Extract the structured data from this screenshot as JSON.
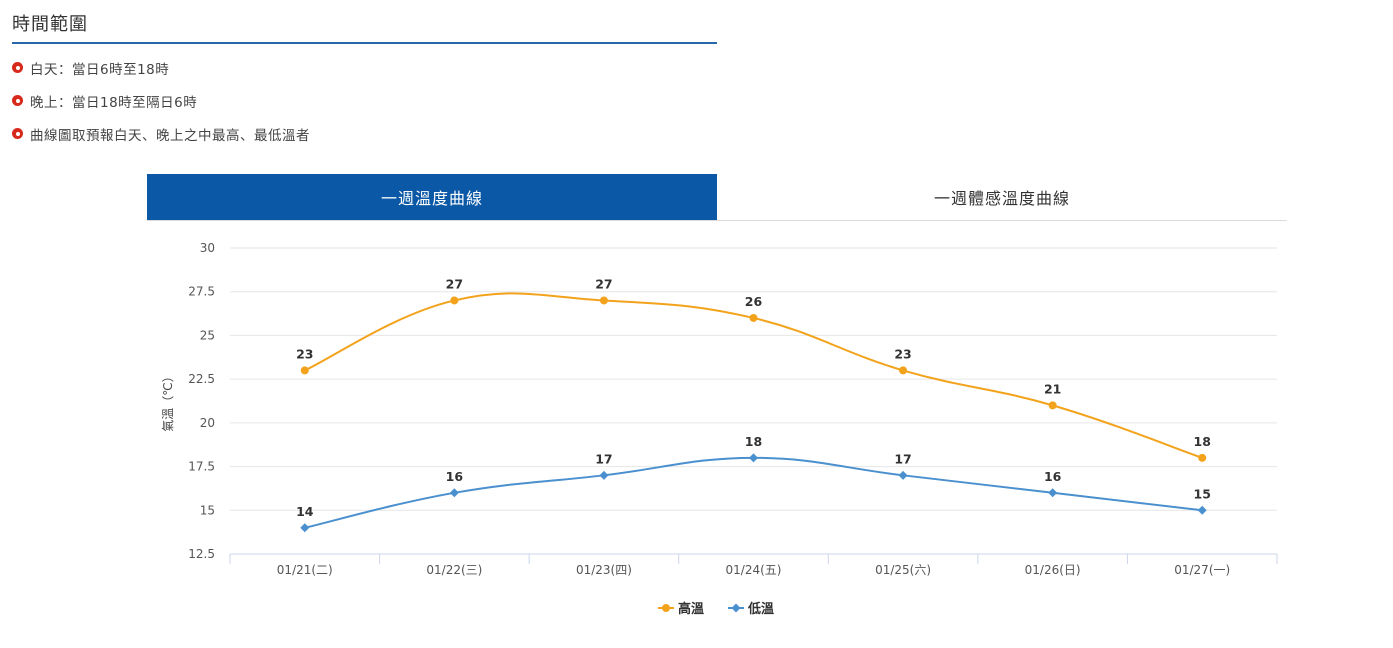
{
  "section": {
    "title": "時間範圍",
    "notes": [
      "白天：當日6時至18時",
      "晚上：當日18時至隔日6時",
      "曲線圖取預報白天、晚上之中最高、最低溫者"
    ]
  },
  "tabs": [
    {
      "label": "一週溫度曲線",
      "active": true
    },
    {
      "label": "一週體感溫度曲線",
      "active": false
    }
  ],
  "colors": {
    "accent": "#0b58a6",
    "high": "#f2a31b",
    "low": "#4a90cf",
    "bullet": "#d62a1c"
  },
  "chart_data": {
    "type": "line",
    "ylabel": "氣溫（℃）",
    "ylim": [
      12.5,
      30
    ],
    "yticks": [
      "12.5",
      "15",
      "17.5",
      "20",
      "22.5",
      "25",
      "27.5",
      "30"
    ],
    "categories": [
      "01/21(二)",
      "01/22(三)",
      "01/23(四)",
      "01/24(五)",
      "01/25(六)",
      "01/26(日)",
      "01/27(一)"
    ],
    "series": [
      {
        "name": "高溫",
        "marker": "circle",
        "color": "#f2a31b",
        "values": [
          23,
          27,
          27,
          26,
          23,
          21,
          18
        ]
      },
      {
        "name": "低溫",
        "marker": "diamond",
        "color": "#4a90cf",
        "values": [
          14,
          16,
          17,
          18,
          17,
          16,
          15
        ]
      }
    ],
    "grid": true,
    "legend": "bottom-center"
  }
}
